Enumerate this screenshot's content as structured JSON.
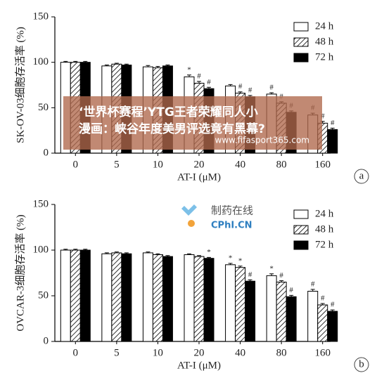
{
  "chart_data": [
    {
      "type": "bar",
      "panel_label": "a",
      "ylabel": "SK-OV-03细胞存活率 (%)",
      "xlabel": "AT-I (μM)",
      "categories": [
        "0",
        "5",
        "10",
        "20",
        "40",
        "80",
        "160"
      ],
      "ylim": [
        0,
        150
      ],
      "yticks": [
        0,
        50,
        100,
        150
      ],
      "series": [
        {
          "name": "24 h",
          "color": "#ffffff",
          "hatch": false,
          "values": [
            100,
            96,
            95,
            84,
            74,
            65,
            42
          ],
          "errors": [
            1,
            1,
            1.5,
            2,
            1.5,
            1.5,
            2
          ],
          "significance": [
            null,
            null,
            null,
            "*",
            null,
            "#",
            "#"
          ]
        },
        {
          "name": "48 h",
          "color": "#ffffff",
          "hatch": true,
          "values": [
            100,
            98,
            94,
            77,
            66,
            55,
            33
          ],
          "errors": [
            1,
            1,
            1.5,
            2,
            1.5,
            1.5,
            2
          ],
          "significance": [
            null,
            null,
            null,
            "#",
            "#",
            "#",
            "#"
          ]
        },
        {
          "name": "72 h",
          "color": "#000000",
          "hatch": false,
          "values": [
            100,
            97,
            96,
            71,
            62,
            45,
            26
          ],
          "errors": [
            1,
            1,
            1,
            1.5,
            1.5,
            1.5,
            1.5
          ],
          "significance": [
            null,
            null,
            null,
            "#",
            "#",
            "#",
            "#"
          ]
        }
      ]
    },
    {
      "type": "bar",
      "panel_label": "b",
      "ylabel": "OVCAR-3细胞存活率 (%)",
      "xlabel": "AT-I (μM)",
      "categories": [
        "0",
        "5",
        "10",
        "20",
        "40",
        "80",
        "160"
      ],
      "ylim": [
        0,
        150
      ],
      "yticks": [
        0,
        50,
        100,
        150
      ],
      "series": [
        {
          "name": "24 h",
          "color": "#ffffff",
          "hatch": false,
          "values": [
            100,
            96,
            97,
            95,
            84,
            72,
            55
          ],
          "errors": [
            1,
            1,
            1,
            1,
            1.5,
            2,
            2
          ],
          "significance": [
            null,
            null,
            null,
            null,
            "*",
            "*",
            "#"
          ]
        },
        {
          "name": "48 h",
          "color": "#ffffff",
          "hatch": true,
          "values": [
            100,
            97,
            95,
            93,
            81,
            65,
            40
          ],
          "errors": [
            1,
            1,
            1,
            1,
            1.5,
            1.5,
            1.5
          ],
          "significance": [
            null,
            null,
            null,
            null,
            "*",
            "#",
            "#"
          ]
        },
        {
          "name": "72 h",
          "color": "#000000",
          "hatch": false,
          "values": [
            100,
            96,
            93,
            91,
            66,
            49,
            33
          ],
          "errors": [
            1,
            1,
            1,
            1,
            1.5,
            1.5,
            1.5
          ],
          "significance": [
            null,
            null,
            null,
            "*",
            "#",
            "#",
            "#"
          ]
        }
      ]
    }
  ],
  "watermark": {
    "line1": "‘世界杯赛程’YTG王者荣耀同人小",
    "line2": "漫画：峡谷年度美男评选竟有黑幕?",
    "url": "www.fifasport365.com",
    "logo_cn": "制药在线",
    "logo_en": "CPhI.CN"
  }
}
